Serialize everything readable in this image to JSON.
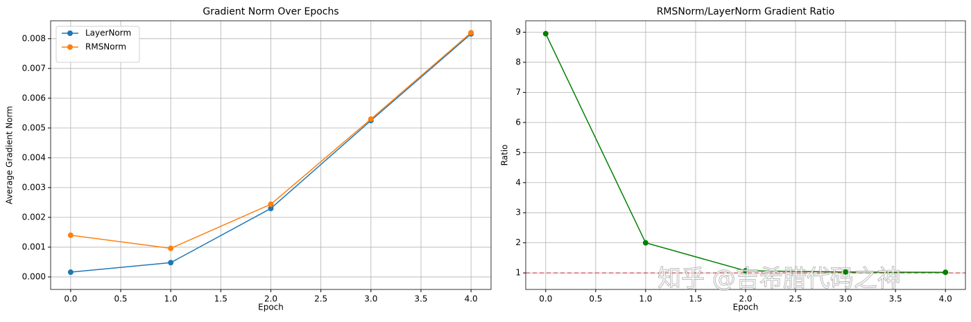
{
  "chart_data": [
    {
      "type": "line",
      "title": "Gradient Norm Over Epochs",
      "x_label": "Epoch",
      "y_label": "Average Gradient Norm",
      "x": [
        0,
        1,
        2,
        3,
        4
      ],
      "series": [
        {
          "name": "LayerNorm",
          "color": "#1f77b4",
          "values": [
            0.00016,
            0.00048,
            0.0023,
            0.00525,
            0.00816
          ]
        },
        {
          "name": "RMSNorm",
          "color": "#ff7f0e",
          "values": [
            0.0014,
            0.00096,
            0.00244,
            0.0053,
            0.0082
          ]
        }
      ],
      "xlim": [
        -0.2,
        4.2
      ],
      "xticks": [
        {
          "value": 0,
          "label": "0.0"
        },
        {
          "value": 0.5,
          "label": "0.5"
        },
        {
          "value": 1,
          "label": "1.0"
        },
        {
          "value": 1.5,
          "label": "1.5"
        },
        {
          "value": 2,
          "label": "2.0"
        },
        {
          "value": 2.5,
          "label": "2.5"
        },
        {
          "value": 3,
          "label": "3.0"
        },
        {
          "value": 3.5,
          "label": "3.5"
        },
        {
          "value": 4,
          "label": "4.0"
        }
      ],
      "ylim": [
        -0.00042,
        0.0086
      ],
      "yticks": [
        {
          "value": 0,
          "label": "0.000"
        },
        {
          "value": 0.001,
          "label": "0.001"
        },
        {
          "value": 0.002,
          "label": "0.002"
        },
        {
          "value": 0.003,
          "label": "0.003"
        },
        {
          "value": 0.004,
          "label": "0.004"
        },
        {
          "value": 0.005,
          "label": "0.005"
        },
        {
          "value": 0.006,
          "label": "0.006"
        },
        {
          "value": 0.007,
          "label": "0.007"
        },
        {
          "value": 0.008,
          "label": "0.008"
        }
      ],
      "grid": true,
      "legend": "upper-left"
    },
    {
      "type": "line",
      "title": "RMSNorm/LayerNorm Gradient Ratio",
      "x_label": "Epoch",
      "y_label": "Ratio",
      "x": [
        0,
        1,
        2,
        3,
        4
      ],
      "series": [
        {
          "color": "#008000",
          "values": [
            8.95,
            2.0,
            1.07,
            1.03,
            1.02
          ]
        }
      ],
      "reference_line": {
        "value": 1,
        "color": "#d62728"
      },
      "xlim": [
        -0.2,
        4.2
      ],
      "xticks": [
        {
          "value": 0,
          "label": "0.0"
        },
        {
          "value": 0.5,
          "label": "0.5"
        },
        {
          "value": 1,
          "label": "1.0"
        },
        {
          "value": 1.5,
          "label": "1.5"
        },
        {
          "value": 2,
          "label": "2.0"
        },
        {
          "value": 2.5,
          "label": "2.5"
        },
        {
          "value": 3,
          "label": "3.0"
        },
        {
          "value": 3.5,
          "label": "3.5"
        },
        {
          "value": 4,
          "label": "4.0"
        }
      ],
      "ylim": [
        0.45,
        9.38
      ],
      "yticks": [
        1,
        2,
        3,
        4,
        5,
        6,
        7,
        8,
        9
      ],
      "grid": true
    }
  ],
  "watermark": "知乎 @吉希腊代码之神"
}
